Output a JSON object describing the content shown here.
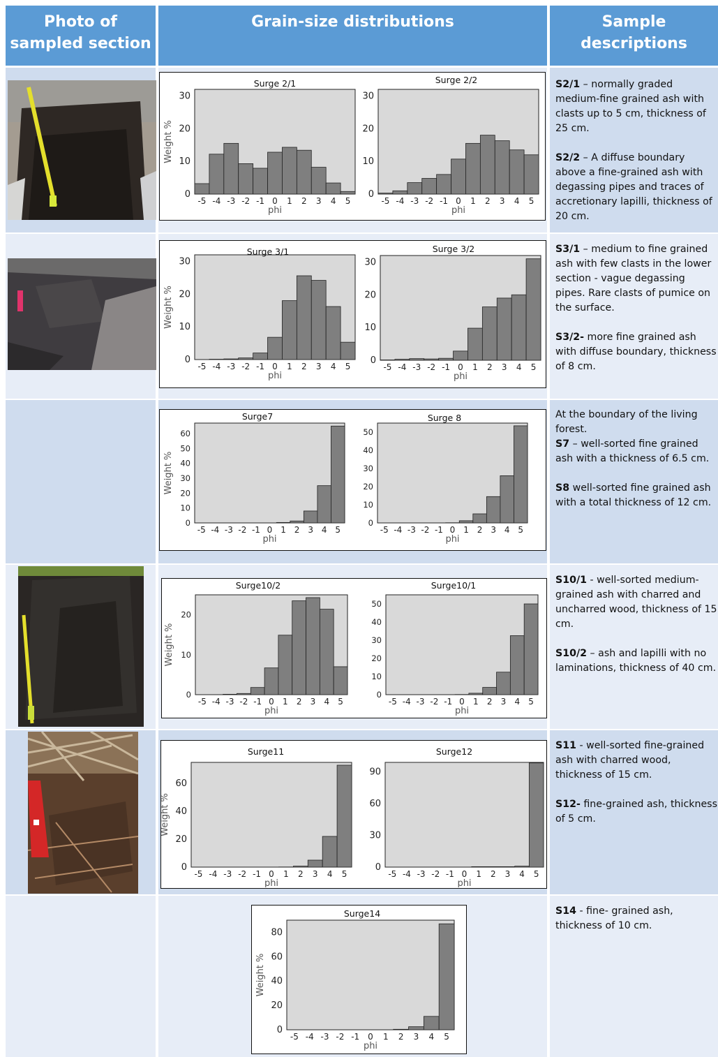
{
  "header": {
    "col1": "Photo of sampled section",
    "col2": "Grain-size distributions",
    "col3": "Sample descriptions"
  },
  "photos": [
    {
      "name": "photo-s2",
      "depicts": "excavated pit with yellow measuring tape"
    },
    {
      "name": "photo-s3",
      "depicts": "ash layer with pink marker"
    },
    {
      "name": "photo-s10",
      "depicts": "dark ash pit with yellow measuring tape"
    },
    {
      "name": "photo-s11",
      "depicts": "charred wood and ash with red pocket knife"
    }
  ],
  "descriptions": {
    "s2": [
      {
        "bold": "S2/1",
        "text": " – normally graded medium-fine grained ash with clasts up to 5 cm, thickness of 25 cm."
      },
      {
        "bold": "S2/2",
        "text": " – A diffuse boundary above a fine-grained ash with degassing pipes and traces of accretionary lapilli, thickness of 20 cm."
      }
    ],
    "s3": [
      {
        "bold": "S3/1",
        "text": " – medium to fine grained ash with few clasts in the lower section - vague degassing pipes. Rare clasts of pumice on the surface."
      },
      {
        "bold": "S3/2-",
        "text": " more fine grained ash with diffuse boundary, thickness of 8 cm."
      }
    ],
    "s7": {
      "intro": "At the boundary of the living forest.",
      "items": [
        {
          "bold": "S7",
          "text": " – well-sorted fine grained ash with a thickness of 6.5 cm."
        },
        {
          "bold": "S8",
          "text": " well-sorted fine grained ash with a total thickness of  12 cm."
        }
      ]
    },
    "s10": [
      {
        "bold": "S10/1",
        "text": " - well-sorted medium-grained ash with charred and uncharred wood, thickness of 15 cm."
      },
      {
        "bold": "S10/2",
        "text": " – ash and lapilli with no laminations, thickness of 40 cm."
      }
    ],
    "s11": [
      {
        "bold": "S11",
        "text": " - well-sorted fine-grained ash with charred wood, thickness of 15 cm."
      },
      {
        "bold": "S12-",
        "text": " fine-grained ash, thickness of 5 cm."
      }
    ],
    "s14": [
      {
        "bold": "S14",
        "text": " - fine- grained ash, thickness of 10 cm."
      }
    ]
  },
  "chart_data": [
    {
      "id": "s21",
      "type": "bar",
      "title": "Surge 2/1",
      "xlabel": "phi",
      "ylabel": "Weight %",
      "categories": [
        "-5",
        "-4",
        "-3",
        "-2",
        "-1",
        "0",
        "1",
        "2",
        "3",
        "4",
        "5"
      ],
      "values": [
        3.2,
        12.2,
        15.5,
        9.3,
        7.9,
        12.8,
        14.3,
        13.4,
        8.2,
        3.4,
        0.8
      ],
      "ylim": [
        0,
        32
      ],
      "yticks": [
        0,
        10,
        20,
        30
      ],
      "xtick_labels": [
        "-5",
        "-4",
        "-3",
        "-2",
        "-1",
        "0",
        "1",
        "2",
        "3",
        "4",
        "5"
      ]
    },
    {
      "id": "s22",
      "type": "bar",
      "title": "Surge 2/2",
      "xlabel": "phi",
      "ylabel": "",
      "categories": [
        "-5",
        "-4",
        "-3",
        "-2",
        "-1",
        "0",
        "1",
        "2",
        "3",
        "4",
        "5"
      ],
      "values": [
        0.3,
        1.0,
        3.5,
        4.8,
        6.0,
        10.7,
        15.5,
        18.0,
        16.3,
        13.5,
        12.0
      ],
      "ylim": [
        0,
        32
      ],
      "yticks": [
        0,
        10,
        20,
        30
      ],
      "xtick_labels": [
        "-5",
        "-4",
        "-3",
        "-2",
        "-1",
        "0",
        "1",
        "2",
        "3",
        "4",
        "5"
      ]
    },
    {
      "id": "s31",
      "type": "bar",
      "title": "Surge 3/1",
      "xlabel": "phi",
      "ylabel": "Weight %",
      "categories": [
        "-5",
        "-4",
        "-3",
        "-2",
        "-1",
        "0",
        "1",
        "2",
        "3",
        "4",
        "5"
      ],
      "values": [
        0,
        0.1,
        0.2,
        0.5,
        2.0,
        6.8,
        18.0,
        25.6,
        24.2,
        16.2,
        5.3
      ],
      "ylim": [
        0,
        32
      ],
      "yticks": [
        0,
        10,
        20,
        30
      ],
      "xtick_labels": [
        "-5",
        "-4",
        "-3",
        "-2",
        "-1",
        "0",
        "1",
        "2",
        "3",
        "4",
        "5"
      ]
    },
    {
      "id": "s32",
      "type": "bar",
      "title": "Surge 3/2",
      "xlabel": "phi",
      "ylabel": "",
      "categories": [
        "-5",
        "-4",
        "-3",
        "-2",
        "-1",
        "0",
        "1",
        "2",
        "3",
        "4",
        "5"
      ],
      "values": [
        0.1,
        0.3,
        0.5,
        0.4,
        0.6,
        2.8,
        9.8,
        16.3,
        19.0,
        20.0,
        31.0
      ],
      "ylim": [
        0,
        32
      ],
      "yticks": [
        0,
        10,
        20,
        30
      ],
      "xtick_labels": [
        "-5",
        "-4",
        "-3",
        "-2",
        "-1",
        "0",
        "1",
        "2",
        "3",
        "4",
        "5"
      ]
    },
    {
      "id": "s7",
      "type": "bar",
      "title": "Surge7",
      "xlabel": "phi",
      "ylabel": "Weight %",
      "categories": [
        "-5",
        "-4",
        "-3",
        "-2",
        "-1",
        "0",
        "1",
        "2",
        "3",
        "4",
        "5"
      ],
      "values": [
        0,
        0,
        0,
        0,
        0,
        0,
        0.3,
        1.3,
        8.0,
        25.0,
        65.0
      ],
      "ylim": [
        0,
        67
      ],
      "yticks": [
        0,
        10,
        20,
        30,
        40,
        50,
        60
      ],
      "xtick_labels": [
        "-5",
        "-4",
        "-3",
        "-2",
        "-1",
        "0",
        "1",
        "2",
        "3",
        "4",
        "5"
      ]
    },
    {
      "id": "s8",
      "type": "bar",
      "title": "Surge 8",
      "xlabel": "phi",
      "ylabel": "",
      "categories": [
        "-5",
        "-4",
        "-3",
        "-2",
        "-1",
        "0",
        "1",
        "2",
        "3",
        "4",
        "5"
      ],
      "values": [
        0,
        0,
        0,
        0,
        0,
        0.1,
        1.2,
        5.0,
        14.5,
        26.0,
        53.5
      ],
      "ylim": [
        0,
        55
      ],
      "yticks": [
        0,
        10,
        20,
        30,
        40,
        50
      ],
      "xtick_labels": [
        "-5",
        "-4",
        "-3",
        "-2",
        "-1",
        "0",
        "1",
        "2",
        "3",
        "4",
        "5"
      ]
    },
    {
      "id": "s102",
      "type": "bar",
      "title": "Surge10/2",
      "xlabel": "phi",
      "ylabel": "Weight %",
      "categories": [
        "-5",
        "-4",
        "-3",
        "-2",
        "-1",
        "0",
        "1",
        "2",
        "3",
        "4",
        "5"
      ],
      "values": [
        0,
        0,
        0.1,
        0.3,
        1.8,
        6.7,
        14.9,
        23.5,
        24.3,
        21.4,
        7.0
      ],
      "ylim": [
        0,
        25
      ],
      "yticks": [
        0,
        10,
        20
      ],
      "xtick_labels": [
        "-5",
        "-4",
        "-3",
        "-2",
        "-1",
        "0",
        "1",
        "2",
        "3",
        "4",
        "5"
      ]
    },
    {
      "id": "s101",
      "type": "bar",
      "title": "Surge10/1",
      "xlabel": "phi",
      "ylabel": "",
      "categories": [
        "-5",
        "-4",
        "-3",
        "-2",
        "-1",
        "0",
        "1",
        "2",
        "3",
        "4",
        "5"
      ],
      "values": [
        0,
        0,
        0,
        0,
        0,
        0.1,
        0.8,
        4.0,
        12.4,
        32.5,
        50.0
      ],
      "ylim": [
        0,
        55
      ],
      "yticks": [
        0,
        10,
        20,
        30,
        40,
        50
      ],
      "xtick_labels": [
        "-5",
        "-4",
        "-3",
        "-2",
        "-1",
        "0",
        "1",
        "2",
        "3",
        "4",
        "5"
      ]
    },
    {
      "id": "s11",
      "type": "bar",
      "title": "Surge11",
      "xlabel": "phi",
      "ylabel": "Weight %",
      "categories": [
        "-5",
        "-4",
        "-3",
        "-2",
        "-1",
        "0",
        "1",
        "2",
        "3",
        "4",
        "5"
      ],
      "values": [
        0,
        0,
        0,
        0,
        0,
        0,
        0.1,
        0.7,
        5.0,
        22.0,
        73.0
      ],
      "ylim": [
        0,
        75
      ],
      "yticks": [
        0,
        20,
        40,
        60
      ],
      "xtick_labels": [
        "-5",
        "-4",
        "-3",
        "-2",
        "-1",
        "0",
        "1",
        "2",
        "3",
        "4",
        "5"
      ]
    },
    {
      "id": "s12",
      "type": "bar",
      "title": "Surge12",
      "xlabel": "phi",
      "ylabel": "",
      "categories": [
        "-5",
        "-4",
        "-3",
        "-2",
        "-1",
        "0",
        "1",
        "2",
        "3",
        "4",
        "5"
      ],
      "values": [
        0,
        0,
        0,
        0,
        0,
        0,
        0.4,
        0.4,
        0.4,
        0.9,
        98.5
      ],
      "ylim": [
        0,
        99
      ],
      "yticks": [
        0,
        30,
        60,
        90
      ],
      "xtick_labels": [
        "-5",
        "-4",
        "-3",
        "-2",
        "-1",
        "0",
        "1",
        "2",
        "3",
        "4",
        "5"
      ]
    },
    {
      "id": "s14",
      "type": "bar",
      "title": "Surge14",
      "xlabel": "phi",
      "ylabel": "Weight %",
      "categories": [
        "-5",
        "-4",
        "-3",
        "-2",
        "-1",
        "0",
        "1",
        "2",
        "3",
        "4",
        "5"
      ],
      "values": [
        0,
        0,
        0,
        0,
        0,
        0,
        0,
        0.4,
        2.5,
        11.0,
        87.0
      ],
      "ylim": [
        0,
        90
      ],
      "yticks": [
        0,
        20,
        40,
        60,
        80
      ],
      "xtick_labels": [
        "-5",
        "-4",
        "-3",
        "-2",
        "-1",
        "0",
        "1",
        "2",
        "3",
        "4",
        "5"
      ]
    }
  ]
}
